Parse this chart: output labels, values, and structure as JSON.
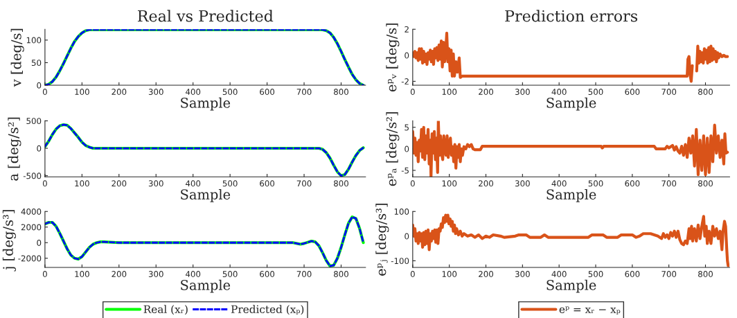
{
  "chart_data": [
    {
      "type": "line",
      "title": "Real vs Predicted",
      "xlabel": "Sample",
      "ylabel": "v [deg/s]",
      "xlim": [
        0,
        866
      ],
      "xticks": [
        0,
        100,
        200,
        300,
        400,
        500,
        600,
        700,
        800
      ],
      "ylim": [
        0,
        124
      ],
      "yticks": [
        0,
        50,
        100
      ],
      "legend": false,
      "series": [
        {
          "color": "#00ff00",
          "line_style": "solid",
          "x": [
            0,
            10,
            20,
            30,
            40,
            50,
            60,
            70,
            80,
            90,
            100,
            110,
            120,
            750,
            760,
            770,
            780,
            790,
            800,
            810,
            820,
            830,
            840,
            850,
            860
          ],
          "values": [
            0,
            2,
            8,
            18,
            32,
            48,
            65,
            82,
            97,
            108,
            116,
            121,
            123,
            123,
            121,
            116,
            106,
            92,
            75,
            57,
            40,
            24,
            12,
            4,
            0
          ]
        },
        {
          "color": "#0000ff",
          "line_style": "dashed",
          "x": [
            0,
            10,
            20,
            30,
            40,
            50,
            60,
            70,
            80,
            90,
            100,
            110,
            120,
            750,
            760,
            770,
            780,
            790,
            800,
            810,
            820,
            830,
            840,
            850,
            860
          ],
          "values": [
            0,
            2,
            8,
            18,
            32,
            48,
            65,
            82,
            97,
            108,
            116,
            121,
            123,
            123,
            121,
            116,
            106,
            92,
            75,
            57,
            40,
            24,
            12,
            4,
            0
          ]
        }
      ]
    },
    {
      "type": "line",
      "title": "Prediction errors",
      "xlabel": "Sample",
      "ylabel": "eᵖᵥ [deg/s]",
      "xlim": [
        0,
        866
      ],
      "xticks": [
        0,
        100,
        200,
        300,
        400,
        500,
        600,
        700,
        800
      ],
      "ylim": [
        -2.3,
        2
      ],
      "yticks": [
        -2,
        0,
        2
      ],
      "legend": false,
      "series": [
        {
          "color": "#d95319",
          "line_style": "solid",
          "x": [
            0,
            3,
            6,
            9,
            12,
            15,
            18,
            21,
            24,
            27,
            30,
            33,
            36,
            39,
            42,
            45,
            48,
            51,
            54,
            57,
            60,
            63,
            66,
            69,
            72,
            75,
            78,
            81,
            84,
            87,
            90,
            93,
            96,
            99,
            102,
            105,
            108,
            111,
            114,
            118,
            122,
            127,
            130,
            135,
            750,
            752,
            755,
            758,
            761,
            764,
            767,
            776,
            779,
            782,
            785,
            788,
            791,
            794,
            797,
            800,
            803,
            806,
            809,
            812,
            815,
            818,
            821,
            824,
            827,
            830,
            833,
            836,
            840,
            845,
            850,
            855,
            860
          ],
          "values": [
            0.2,
            -0.1,
            0.3,
            -0.2,
            0.2,
            -0.4,
            0.5,
            -0.3,
            0.5,
            -0.6,
            0.3,
            -0.5,
            0.1,
            -0.7,
            0.2,
            -0.3,
            0.4,
            -0.5,
            0.3,
            -0.7,
            0.5,
            -0.2,
            0.6,
            -0.4,
            0.8,
            -0.3,
            1.1,
            -0.9,
            1.0,
            -0.5,
            0.2,
            1.7,
            -0.5,
            0.5,
            -1.2,
            0.4,
            -1.6,
            0.1,
            -1.6,
            -0.5,
            -1.3,
            -0.2,
            -1.7,
            -1.6,
            -1.6,
            -0.3,
            -0.1,
            -1.5,
            -2.0,
            -0.8,
            null,
            -1.2,
            0.7,
            -0.6,
            0.3,
            -0.5,
            0.2,
            -0.6,
            0.5,
            -0.3,
            0.4,
            -0.6,
            0.6,
            -0.5,
            0.7,
            -0.4,
            0.5,
            -0.3,
            0.3,
            -0.5,
            0.2,
            -0.2,
            0.1,
            -0.1,
            0.0,
            -0.1,
            -0.1
          ]
        }
      ]
    },
    {
      "type": "line",
      "xlabel": "Sample",
      "ylabel": "a [deg/s²]",
      "xlim": [
        0,
        866
      ],
      "xticks": [
        0,
        100,
        200,
        300,
        400,
        500,
        600,
        700,
        800
      ],
      "ylim": [
        -520,
        500
      ],
      "yticks": [
        -500,
        0,
        500
      ],
      "legend": false,
      "series": [
        {
          "color": "#00ff00",
          "line_style": "solid",
          "x": [
            0,
            10,
            20,
            30,
            40,
            50,
            60,
            70,
            80,
            90,
            100,
            110,
            120,
            130,
            740,
            750,
            760,
            770,
            780,
            790,
            800,
            810,
            820,
            830,
            840,
            850,
            860
          ],
          "values": [
            30,
            130,
            250,
            350,
            410,
            430,
            420,
            360,
            280,
            200,
            110,
            50,
            20,
            0,
            0,
            -20,
            -80,
            -180,
            -310,
            -430,
            -500,
            -480,
            -380,
            -250,
            -130,
            -40,
            10
          ]
        },
        {
          "color": "#0000ff",
          "line_style": "dashed",
          "x": [
            0,
            10,
            20,
            30,
            40,
            50,
            60,
            70,
            80,
            90,
            100,
            110,
            120,
            130,
            740,
            750,
            760,
            770,
            780,
            790,
            800,
            810,
            820,
            830,
            840,
            850,
            860
          ],
          "values": [
            30,
            130,
            250,
            350,
            410,
            430,
            420,
            360,
            280,
            200,
            110,
            50,
            20,
            0,
            0,
            -20,
            -80,
            -180,
            -310,
            -430,
            -500,
            -480,
            -380,
            -250,
            -130,
            -40,
            10
          ]
        }
      ]
    },
    {
      "type": "line",
      "xlabel": "Sample",
      "ylabel": "eᵖₐ [deg/s²]",
      "xlim": [
        0,
        866
      ],
      "xticks": [
        0,
        100,
        200,
        300,
        400,
        500,
        600,
        700,
        800
      ],
      "ylim": [
        -6.5,
        6.5
      ],
      "yticks": [
        -5,
        0,
        5
      ],
      "legend": false,
      "series": [
        {
          "color": "#d95319",
          "line_style": "solid",
          "x": [
            0,
            3,
            6,
            9,
            12,
            15,
            18,
            21,
            24,
            27,
            30,
            33,
            36,
            39,
            42,
            45,
            48,
            50,
            53,
            56,
            59,
            62,
            65,
            68,
            70,
            73,
            76,
            79,
            82,
            85,
            88,
            91,
            94,
            97,
            100,
            103,
            106,
            109,
            112,
            115,
            118,
            121,
            124,
            127,
            130,
            133,
            136,
            140,
            145,
            150,
            155,
            160,
            165,
            170,
            185,
            190,
            515,
            518,
            522,
            660,
            665,
            690,
            695,
            700,
            710,
            715,
            720,
            725,
            730,
            735,
            740,
            745,
            750,
            755,
            760,
            765,
            770,
            775,
            780,
            785,
            790,
            795,
            800,
            805,
            810,
            815,
            820,
            825,
            830,
            835,
            840,
            845,
            850,
            853,
            856,
            860
          ],
          "values": [
            4.0,
            -1,
            2.5,
            -1.5,
            1.5,
            -3.0,
            2,
            -0.5,
            4.5,
            -2,
            5,
            -2.5,
            3,
            -1,
            4.5,
            -3.5,
            2,
            -6.5,
            3.5,
            -1,
            4,
            -2.5,
            2.5,
            -5.5,
            6.5,
            -1.5,
            3.0,
            -1,
            -2.5,
            3,
            0,
            -1.5,
            3,
            -2,
            1,
            2.5,
            -1.5,
            0.5,
            -3,
            1,
            -4.5,
            0.5,
            -2,
            1,
            -3,
            0,
            -1.5,
            0.5,
            0,
            1.0,
            0.5,
            1.0,
            0,
            -0.2,
            -0.2,
            0.6,
            0.6,
            0.2,
            0.6,
            0.6,
            0,
            0,
            0.6,
            0.2,
            0.8,
            -0.3,
            0.5,
            -0.5,
            -1,
            0.6,
            -1.5,
            1,
            -2,
            2.5,
            -1,
            3,
            -4,
            4.5,
            -6,
            2,
            -5,
            3,
            -6,
            2.5,
            -5.5,
            3,
            -3,
            5.5,
            -1,
            3,
            -2,
            2,
            -3.5,
            3.5,
            -1,
            -0.8
          ]
        }
      ]
    },
    {
      "type": "line",
      "xlabel": "Sample",
      "ylabel": "j [deg/s³]",
      "xlim": [
        0,
        866
      ],
      "xticks": [
        0,
        100,
        200,
        300,
        400,
        500,
        600,
        700,
        800
      ],
      "ylim": [
        -3180,
        4000
      ],
      "yticks": [
        -2000,
        0,
        2000,
        4000
      ],
      "legend": "bottom",
      "series": [
        {
          "name": "Real (xᵣ)",
          "color": "#00ff00",
          "line_style": "solid",
          "x": [
            0,
            10,
            20,
            30,
            40,
            50,
            60,
            70,
            80,
            90,
            100,
            110,
            120,
            130,
            140,
            150,
            160,
            200,
            650,
            670,
            690,
            700,
            720,
            730,
            740,
            750,
            760,
            770,
            780,
            790,
            800,
            810,
            820,
            830,
            840,
            850,
            860
          ],
          "values": [
            2400,
            2600,
            2600,
            2100,
            1200,
            200,
            -800,
            -1600,
            -2000,
            -2100,
            -1800,
            -1200,
            -600,
            -200,
            0,
            100,
            100,
            0,
            0,
            0,
            -200,
            -100,
            200,
            100,
            -400,
            -1300,
            -2300,
            -3000,
            -2900,
            -2000,
            -600,
            1000,
            2500,
            3300,
            3100,
            1800,
            0
          ]
        },
        {
          "name": "Predicted (xₚ)",
          "color": "#0000ff",
          "line_style": "dashed",
          "x": [
            0,
            10,
            20,
            30,
            40,
            50,
            60,
            70,
            80,
            90,
            100,
            110,
            120,
            130,
            140,
            150,
            160,
            200,
            650,
            670,
            690,
            700,
            720,
            730,
            740,
            750,
            760,
            770,
            780,
            790,
            800,
            810,
            820,
            830,
            840,
            850,
            860
          ],
          "values": [
            2400,
            2600,
            2600,
            2100,
            1200,
            200,
            -800,
            -1600,
            -2000,
            -2100,
            -1800,
            -1200,
            -600,
            -200,
            0,
            100,
            100,
            0,
            0,
            0,
            -200,
            -100,
            200,
            100,
            -400,
            -1300,
            -2300,
            -3000,
            -2900,
            -2000,
            -600,
            1000,
            2500,
            3300,
            3100,
            1800,
            0
          ]
        }
      ]
    },
    {
      "type": "line",
      "xlabel": "Sample",
      "ylabel": "eᵖⱼ [deg/s³]",
      "xlim": [
        0,
        866
      ],
      "xticks": [
        0,
        100,
        200,
        300,
        400,
        500,
        600,
        700,
        800
      ],
      "ylim": [
        -127,
        100
      ],
      "yticks": [
        -100,
        0,
        100
      ],
      "legend": "bottom",
      "series": [
        {
          "name": "eᵖ = xᵣ − xₚ",
          "color": "#d95319",
          "line_style": "solid",
          "x": [
            0,
            3,
            6,
            9,
            12,
            15,
            18,
            21,
            24,
            27,
            30,
            33,
            36,
            39,
            42,
            45,
            48,
            51,
            54,
            57,
            60,
            63,
            66,
            69,
            72,
            75,
            78,
            81,
            84,
            87,
            90,
            93,
            96,
            99,
            102,
            105,
            108,
            111,
            114,
            117,
            120,
            125,
            130,
            135,
            140,
            150,
            160,
            170,
            180,
            190,
            200,
            210,
            220,
            240,
            250,
            280,
            290,
            310,
            320,
            350,
            360,
            370,
            480,
            490,
            520,
            530,
            560,
            570,
            600,
            610,
            620,
            630,
            650,
            660,
            670,
            680,
            685,
            690,
            695,
            700,
            705,
            710,
            715,
            720,
            725,
            730,
            735,
            740,
            745,
            750,
            755,
            758,
            762,
            765,
            770,
            775,
            780,
            785,
            790,
            795,
            798,
            802,
            805,
            810,
            815,
            820,
            825,
            830,
            835,
            840,
            845,
            848,
            852,
            855,
            858,
            860,
            862
          ],
          "values": [
            45,
            0,
            30,
            -20,
            10,
            -30,
            15,
            -20,
            10,
            -45,
            15,
            -35,
            20,
            -30,
            25,
            -55,
            10,
            -20,
            20,
            -10,
            25,
            -25,
            25,
            -30,
            30,
            20,
            50,
            35,
            75,
            55,
            85,
            60,
            85,
            50,
            70,
            40,
            60,
            20,
            45,
            10,
            30,
            5,
            20,
            0,
            10,
            0,
            5,
            -5,
            5,
            -10,
            0,
            -5,
            5,
            0,
            -5,
            0,
            5,
            5,
            -5,
            -5,
            5,
            -5,
            -5,
            5,
            5,
            -5,
            -5,
            5,
            5,
            -5,
            0,
            10,
            10,
            5,
            0,
            -10,
            10,
            -5,
            5,
            -10,
            15,
            0,
            20,
            -5,
            20,
            -15,
            -30,
            -35,
            -20,
            -30,
            30,
            -10,
            40,
            -20,
            30,
            -20,
            45,
            -10,
            40,
            80,
            0,
            40,
            -30,
            20,
            -30,
            40,
            0,
            30,
            -10,
            20,
            -55,
            20,
            60,
            40,
            -50,
            -100,
            -120
          ]
        }
      ]
    }
  ]
}
